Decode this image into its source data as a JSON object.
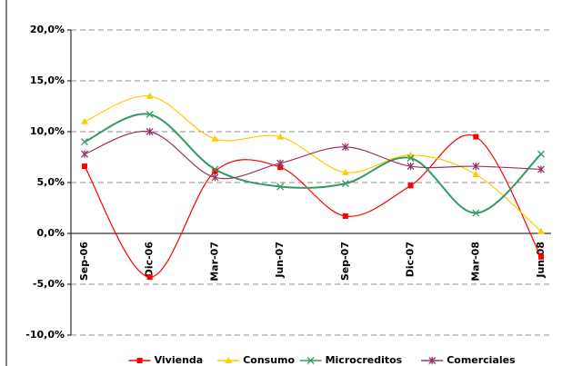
{
  "chart_data": {
    "type": "line",
    "categories": [
      "Sep-06",
      "Dic-06",
      "Mar-07",
      "Jun-07",
      "Sep-07",
      "Dic-07",
      "Mar-08",
      "Jun-08"
    ],
    "series": [
      {
        "name": "Vivienda",
        "color": "#ff0000",
        "marker": "square",
        "values": [
          6.6,
          -4.3,
          6.1,
          6.5,
          1.7,
          4.7,
          9.5,
          -2.3
        ]
      },
      {
        "name": "Consumo",
        "color": "#ffcc00",
        "marker": "triangle",
        "values": [
          11.0,
          13.5,
          9.3,
          9.5,
          6.0,
          7.7,
          5.8,
          0.2
        ]
      },
      {
        "name": "Microcreditos",
        "color": "#339966",
        "marker": "x",
        "values": [
          9.0,
          11.7,
          6.3,
          4.6,
          4.9,
          7.4,
          2.0,
          7.8
        ]
      },
      {
        "name": "Comerciales",
        "color": "#993366",
        "marker": "asterisk",
        "values": [
          7.8,
          10.0,
          5.5,
          6.9,
          8.5,
          6.6,
          6.6,
          6.3
        ]
      }
    ],
    "ylim": [
      -10,
      20
    ],
    "yticks": [
      {
        "value": -10,
        "label": "-10,0%"
      },
      {
        "value": -5,
        "label": "-5,0%"
      },
      {
        "value": 0,
        "label": "0,0%"
      },
      {
        "value": 5,
        "label": "5,0%"
      },
      {
        "value": 10,
        "label": "10,0%"
      },
      {
        "value": 15,
        "label": "15,0%"
      },
      {
        "value": 20,
        "label": "20,0%"
      }
    ],
    "grid": true,
    "legend": "bottom"
  }
}
